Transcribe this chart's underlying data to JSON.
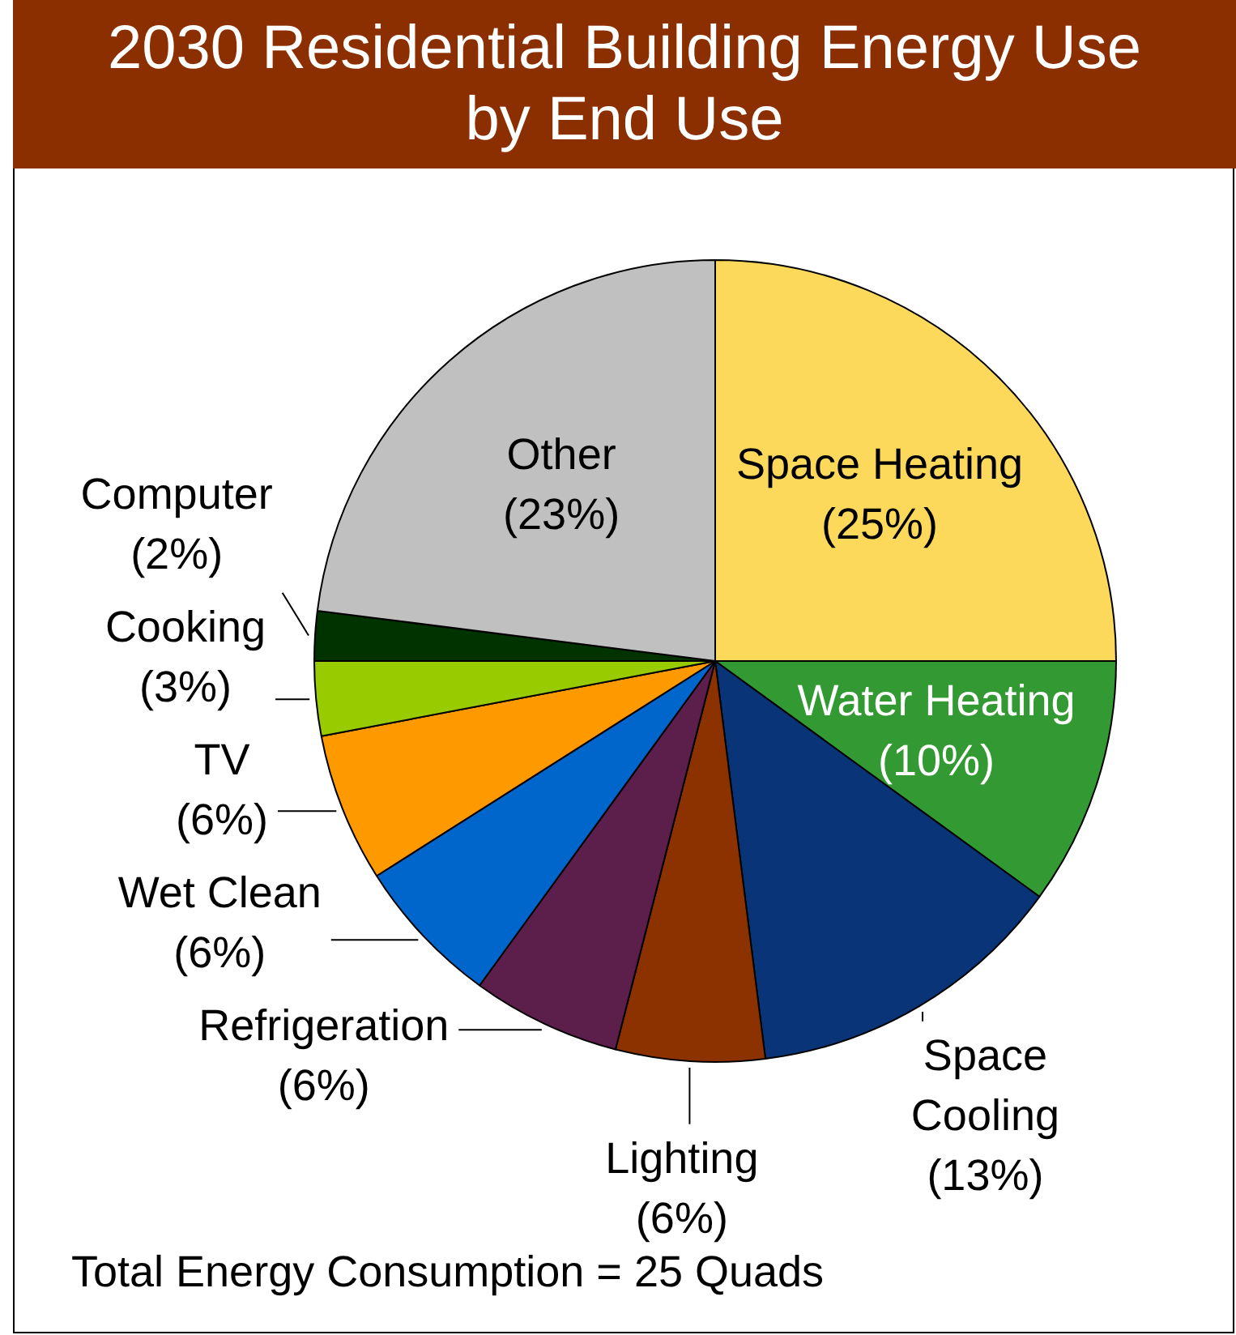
{
  "chart_data": {
    "type": "pie",
    "title": "2030 Residential Building Energy Use by End Use",
    "categories": [
      "Space Heating",
      "Water Heating",
      "Space Cooling",
      "Lighting",
      "Refrigeration",
      "Wet Clean",
      "TV",
      "Cooking",
      "Computer",
      "Other"
    ],
    "values": [
      25,
      10,
      13,
      6,
      6,
      6,
      6,
      3,
      2,
      23
    ],
    "colors": [
      "#fcd95a",
      "#339933",
      "#0a3478",
      "#8b3200",
      "#5c1e4a",
      "#0066cc",
      "#ff9900",
      "#99cc00",
      "#003300",
      "#c0c0c0"
    ],
    "value_labels": [
      "(25%)",
      "(10%)",
      "(13%)",
      "(6%)",
      "(6%)",
      "(6%)",
      "(6%)",
      "(3%)",
      "(2%)",
      "(23%)"
    ],
    "annotations": [
      "Total Energy Consumption = 25 Quads"
    ]
  }
}
